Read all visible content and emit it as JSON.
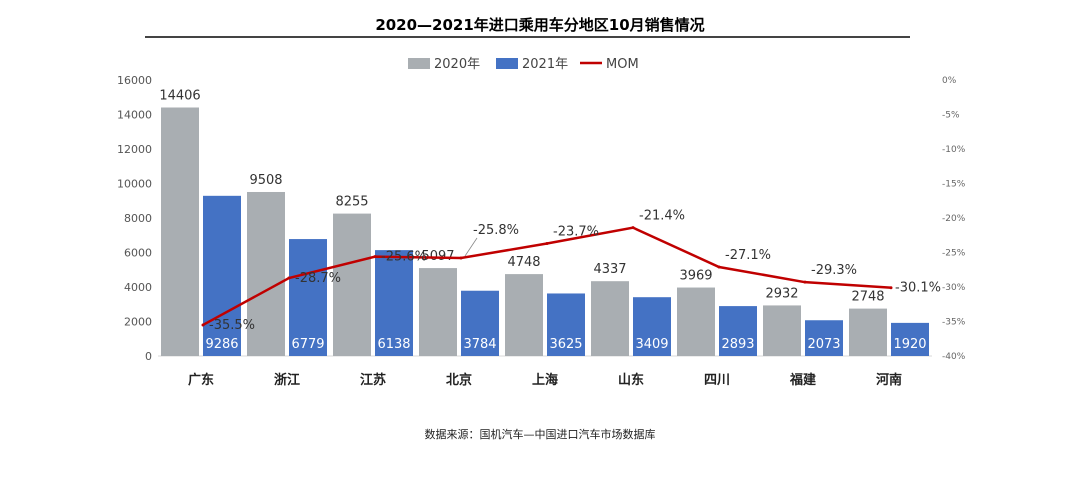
{
  "title": "2020—2021年进口乘用车分地区10月销售情况",
  "source_note": "数据来源：国机汽车—中国进口汽车市场数据库",
  "colors": {
    "series_2020": "#a9aeb2",
    "series_2021": "#4472c4",
    "mom": "#c00000",
    "axis": "#d9d9d9"
  },
  "chart_data": {
    "type": "bar",
    "title": "2020—2021年进口乘用车分地区10月销售情况",
    "categories": [
      "广东",
      "浙江",
      "江苏",
      "北京",
      "上海",
      "山东",
      "四川",
      "福建",
      "河南"
    ],
    "series": [
      {
        "name": "2020年",
        "type": "bar",
        "axis": "left",
        "values": [
          14406,
          9508,
          8255,
          5097,
          4748,
          4337,
          3969,
          2932,
          2748
        ],
        "labels": [
          "14406",
          "9508",
          "8255",
          "5097",
          "4748",
          "4337",
          "3969",
          "2932",
          "2748"
        ]
      },
      {
        "name": "2021年",
        "type": "bar",
        "axis": "left",
        "values": [
          9286,
          6779,
          6138,
          3784,
          3625,
          3409,
          2893,
          2073,
          1920
        ],
        "labels": [
          "9286",
          "6779",
          "6138",
          "3784",
          "3625",
          "3409",
          "2893",
          "2073",
          "1920"
        ]
      },
      {
        "name": "MOM",
        "type": "line",
        "axis": "right",
        "values": [
          -35.5,
          -28.7,
          -25.6,
          -25.8,
          -23.7,
          -21.4,
          -27.1,
          -29.3,
          -30.1
        ],
        "labels": [
          "-35.5%",
          "-28.7%",
          "-25.6%",
          "-25.8%",
          "-23.7%",
          "-21.4%",
          "-27.1%",
          "-29.3%",
          "-30.1%"
        ]
      }
    ],
    "y_left": {
      "ylim": [
        0,
        16000
      ],
      "ticks": [
        "0",
        "2000",
        "4000",
        "6000",
        "8000",
        "10000",
        "12000",
        "14000",
        "16000"
      ]
    },
    "y_right": {
      "ylim": [
        -40,
        0
      ],
      "ticks": [
        "0%",
        "-5%",
        "-10%",
        "-15%",
        "-20%",
        "-25%",
        "-30%",
        "-35%",
        "-40%"
      ]
    },
    "legend": {
      "placement": "top-center",
      "items": [
        "2020年",
        "2021年",
        "MOM"
      ]
    },
    "grid": false
  }
}
